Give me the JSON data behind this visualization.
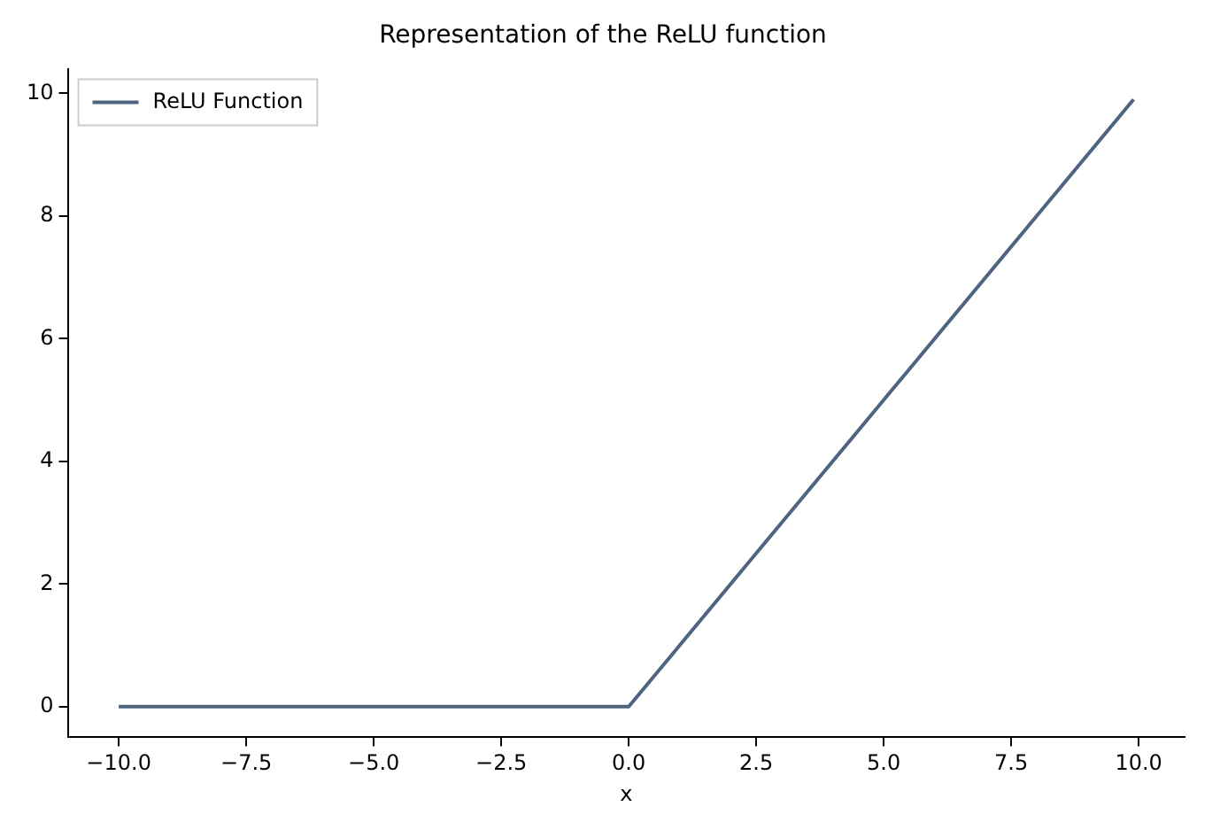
{
  "chart_data": {
    "type": "line",
    "title": "Representation of the ReLU function",
    "xlabel": "x",
    "x": [
      -10,
      0,
      9.9
    ],
    "series": [
      {
        "name": "ReLU Function",
        "color": "#4f6480",
        "values": [
          0,
          0,
          9.9
        ]
      }
    ],
    "xlim": [
      -11,
      10.9
    ],
    "ylim": [
      -0.5,
      10.4
    ],
    "xticks": [
      {
        "value": -10,
        "label": "−10.0"
      },
      {
        "value": -7.5,
        "label": "−7.5"
      },
      {
        "value": -5,
        "label": "−5.0"
      },
      {
        "value": -2.5,
        "label": "−2.5"
      },
      {
        "value": 0,
        "label": "0.0"
      },
      {
        "value": 2.5,
        "label": "2.5"
      },
      {
        "value": 5,
        "label": "5.0"
      },
      {
        "value": 7.5,
        "label": "7.5"
      },
      {
        "value": 10,
        "label": "10.0"
      }
    ],
    "yticks": [
      0,
      2,
      4,
      6,
      8,
      10
    ],
    "legend": "top left",
    "grid": false,
    "marker": "none",
    "line_style": "solid"
  }
}
